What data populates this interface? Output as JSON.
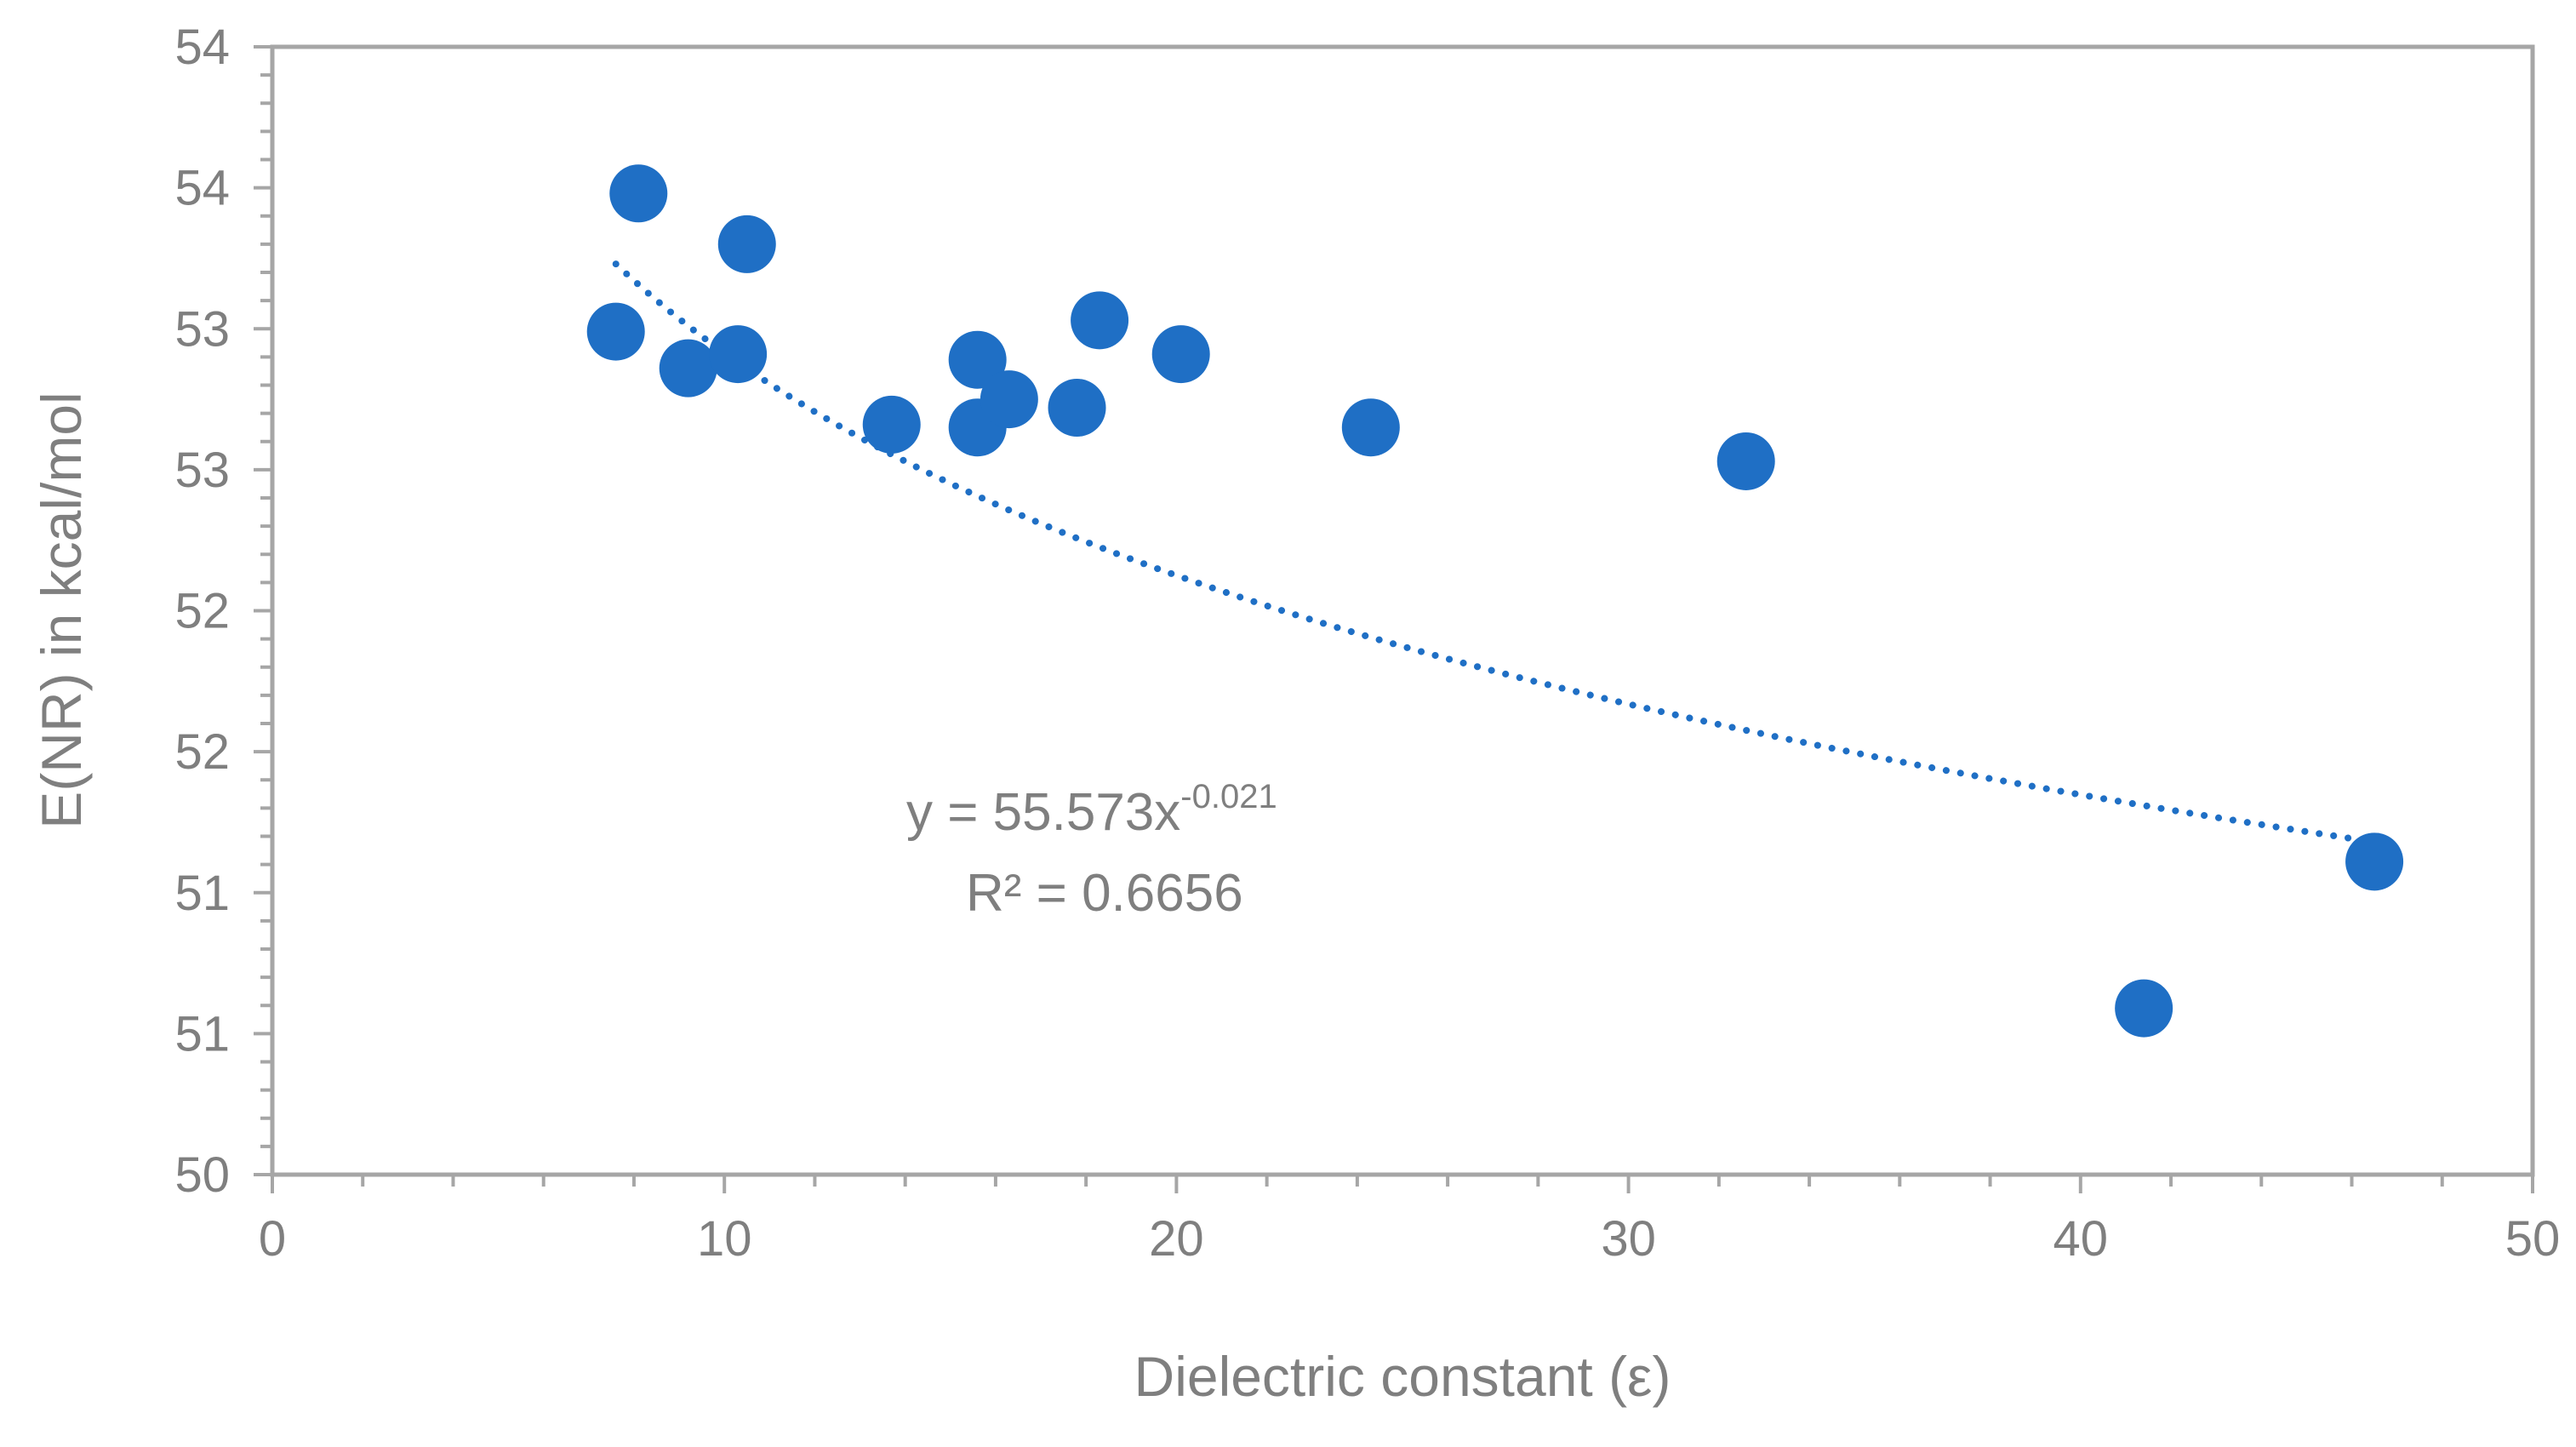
{
  "chart_data": {
    "type": "scatter",
    "xlabel": "Dielectric constant (ε)",
    "ylabel": "E(NR) in kcal/mol",
    "xlim": [
      0,
      50
    ],
    "ylim": [
      50,
      54
    ],
    "x_ticks": [
      0,
      10,
      20,
      30,
      40,
      50
    ],
    "x_tick_labels": [
      "0",
      "10",
      "20",
      "30",
      "40",
      "50"
    ],
    "y_ticks": [
      50,
      50.5,
      51,
      51.5,
      52,
      52.5,
      53,
      53.5,
      54
    ],
    "y_tick_labels": [
      "50",
      "51",
      "51",
      "52",
      "52",
      "53",
      "53",
      "54",
      "54"
    ],
    "grid": false,
    "legend": "none",
    "marker_color": "#1f6fc5",
    "trendline_color": "#1f6fc5",
    "series": [
      {
        "points": [
          {
            "x": 7.6,
            "y": 52.99
          },
          {
            "x": 8.1,
            "y": 53.48
          },
          {
            "x": 9.2,
            "y": 52.86
          },
          {
            "x": 10.3,
            "y": 52.91
          },
          {
            "x": 10.5,
            "y": 53.3
          },
          {
            "x": 13.7,
            "y": 52.66
          },
          {
            "x": 15.6,
            "y": 52.89
          },
          {
            "x": 15.6,
            "y": 52.65
          },
          {
            "x": 16.3,
            "y": 52.75
          },
          {
            "x": 17.8,
            "y": 52.72
          },
          {
            "x": 18.3,
            "y": 53.03
          },
          {
            "x": 20.1,
            "y": 52.91
          },
          {
            "x": 24.3,
            "y": 52.65
          },
          {
            "x": 32.6,
            "y": 52.53
          },
          {
            "x": 41.4,
            "y": 50.59
          },
          {
            "x": 46.5,
            "y": 51.11
          }
        ]
      }
    ],
    "trendline": {
      "type": "power",
      "a": 55.573,
      "b": -0.021,
      "x_range": [
        7.6,
        46.5
      ],
      "y_range": [
        51.18,
        53.23
      ],
      "style": "dotted"
    },
    "annotation": {
      "equation_base": "y = 55.573x",
      "equation_exponent": "-0.021",
      "r_squared": "R² = 0.6656"
    }
  }
}
